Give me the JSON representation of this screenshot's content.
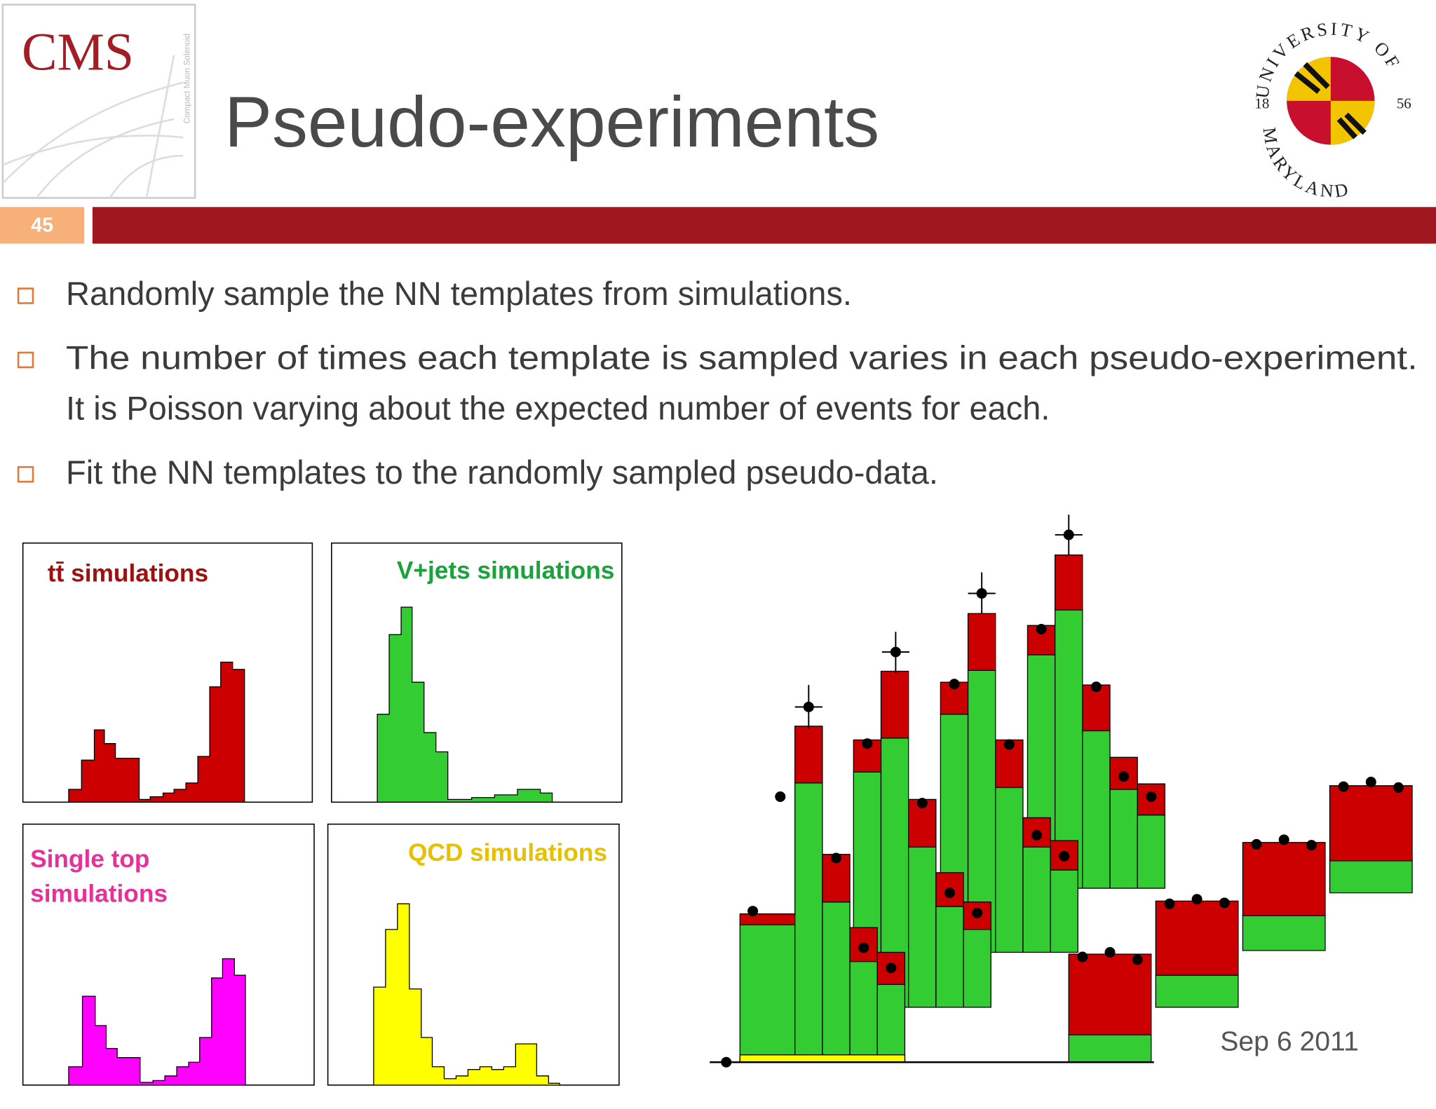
{
  "header": {
    "logo": "CMS",
    "logo_side": "Compact Muon Solenoid",
    "title": "Pseudo-experiments",
    "slide_number": "45",
    "university": {
      "top": "UNIVERSITY OF",
      "left": "18",
      "right": "56",
      "bottom": "MARYLAND"
    }
  },
  "bullets": [
    {
      "lines": [
        "Randomly sample the NN templates from simulations."
      ]
    },
    {
      "lines": [
        "The number of times each template is sampled varies in each pseudo-experiment.",
        "It is Poisson varying about the expected number of events for each."
      ]
    },
    {
      "lines": [
        "Fit the NN templates to the randomly sampled pseudo-data."
      ]
    }
  ],
  "panels": [
    {
      "lines": [
        "tt̄ simulations"
      ]
    },
    {
      "lines": [
        "V+jets simulations"
      ]
    },
    {
      "lines": [
        "Single top",
        "simulations"
      ]
    },
    {
      "lines": [
        "QCD simulations"
      ]
    }
  ],
  "date": "Sep 6 2011"
}
